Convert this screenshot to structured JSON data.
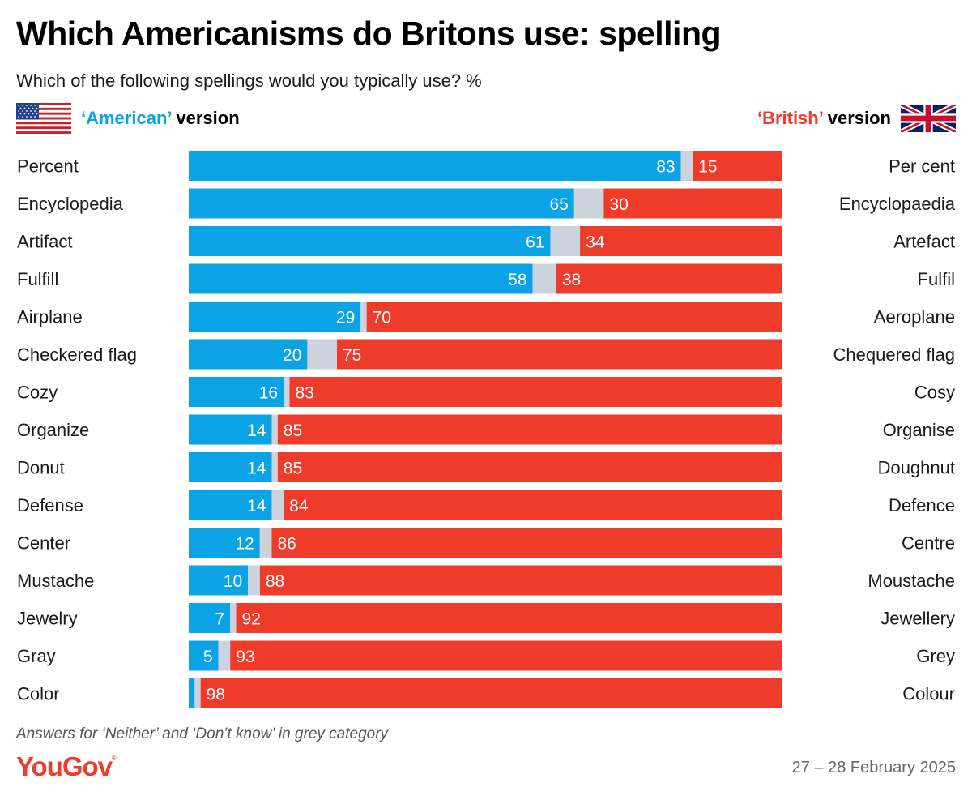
{
  "header": {
    "title": "Which Americanisms do Britons use: spelling",
    "subtitle": "Which of the following spellings would you typically use? %"
  },
  "legend": {
    "american_quoted": "‘American’",
    "american_rest": " version",
    "british_quoted": "‘British’",
    "british_rest": " version",
    "american_icon": "us-flag-icon",
    "british_icon": "uk-flag-icon"
  },
  "colors": {
    "american": "#0aa4e6",
    "british": "#ee3b2a",
    "neither": "#cdd3dc"
  },
  "chart_data": {
    "type": "bar",
    "orientation": "horizontal",
    "stacked": true,
    "normalized": true,
    "title": "Which Americanisms do Britons use: spelling",
    "subtitle": "Which of the following spellings would you typically use? %",
    "xlim": [
      0,
      100
    ],
    "grid": false,
    "legend_placement": "top",
    "categories": [
      "Percent",
      "Encyclopedia",
      "Artifact",
      "Fulfill",
      "Airplane",
      "Checkered flag",
      "Cozy",
      "Organize",
      "Donut",
      "Defense",
      "Center",
      "Mustache",
      "Jewelry",
      "Gray",
      "Color"
    ],
    "british_labels": [
      "Per cent",
      "Encyclopaedia",
      "Artefact",
      "Fulfil",
      "Aeroplane",
      "Chequered flag",
      "Cosy",
      "Organise",
      "Doughnut",
      "Defence",
      "Centre",
      "Moustache",
      "Jewellery",
      "Grey",
      "Colour"
    ],
    "series": [
      {
        "name": "‘American’ version",
        "values": [
          83,
          65,
          61,
          58,
          29,
          20,
          16,
          14,
          14,
          14,
          12,
          10,
          7,
          5,
          1
        ]
      },
      {
        "name": "Neither / Don't know",
        "values": [
          2,
          5,
          5,
          4,
          1,
          5,
          1,
          1,
          1,
          2,
          2,
          2,
          1,
          2,
          1
        ]
      },
      {
        "name": "‘British’ version",
        "values": [
          15,
          30,
          34,
          38,
          70,
          75,
          83,
          85,
          85,
          84,
          86,
          88,
          92,
          93,
          98
        ]
      }
    ],
    "american_label_shown": [
      true,
      true,
      true,
      true,
      true,
      true,
      true,
      true,
      true,
      true,
      true,
      true,
      true,
      true,
      false
    ]
  },
  "footer": {
    "footnote": "Answers for ‘Neither’ and ‘Don’t know’ in grey category",
    "logo": "YouGov",
    "logo_mark": "®",
    "date": "27 – 28 February 2025"
  }
}
